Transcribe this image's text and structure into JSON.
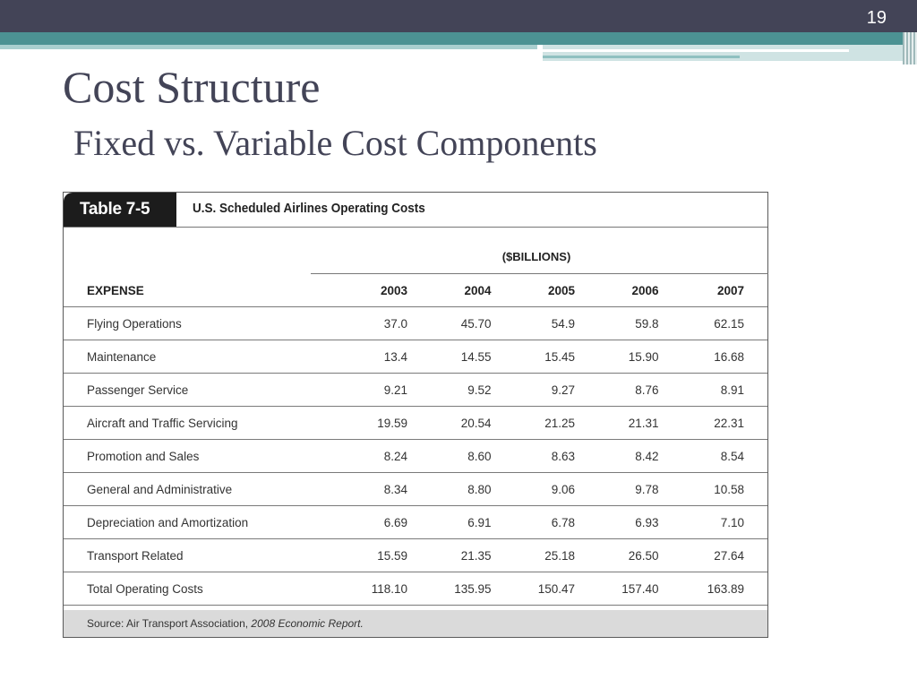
{
  "slide": {
    "number": "19",
    "title": "Cost Structure",
    "subtitle": "Fixed vs. Variable Cost Components",
    "colors": {
      "top_bar": "#434457",
      "accent": "#4c9293",
      "title_text": "#434457"
    }
  },
  "table": {
    "label": "Table 7-5",
    "caption": "U.S. Scheduled Airlines Operating Costs",
    "units": "($BILLIONS)",
    "columns": [
      "EXPENSE",
      "2003",
      "2004",
      "2005",
      "2006",
      "2007"
    ],
    "rows": [
      [
        "Flying Operations",
        "37.0",
        "45.70",
        "54.9",
        "59.8",
        "62.15"
      ],
      [
        "Maintenance",
        "13.4",
        "14.55",
        "15.45",
        "15.90",
        "16.68"
      ],
      [
        "Passenger Service",
        "9.21",
        "9.52",
        "9.27",
        "8.76",
        "8.91"
      ],
      [
        "Aircraft and Traffic Servicing",
        "19.59",
        "20.54",
        "21.25",
        "21.31",
        "22.31"
      ],
      [
        "Promotion and Sales",
        "8.24",
        "8.60",
        "8.63",
        "8.42",
        "8.54"
      ],
      [
        "General and Administrative",
        "8.34",
        "8.80",
        "9.06",
        "9.78",
        "10.58"
      ],
      [
        "Depreciation and Amortization",
        "6.69",
        "6.91",
        "6.78",
        "6.93",
        "7.10"
      ],
      [
        "Transport Related",
        "15.59",
        "21.35",
        "25.18",
        "26.50",
        "27.64"
      ],
      [
        "Total Operating Costs",
        "118.10",
        "135.95",
        "150.47",
        "157.40",
        "163.89"
      ]
    ],
    "source_prefix": "Source: Air Transport Association, ",
    "source_title": "2008 Economic Report."
  }
}
